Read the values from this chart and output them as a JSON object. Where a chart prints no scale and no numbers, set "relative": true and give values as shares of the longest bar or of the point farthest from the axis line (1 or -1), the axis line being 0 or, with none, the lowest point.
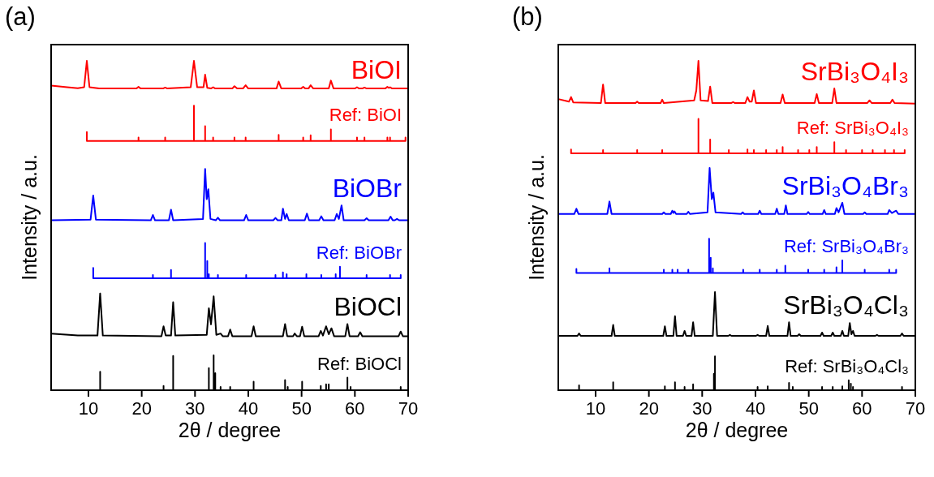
{
  "chart_data": [
    {
      "type": "line",
      "title": "(a)",
      "xlabel": "2θ / degree",
      "ylabel": "Intensity / a.u.",
      "relative": true,
      "xlim": [
        3,
        70
      ],
      "xticks": [
        10,
        20,
        30,
        40,
        50,
        60,
        70
      ],
      "legend": false,
      "grid": false,
      "marker": "none",
      "series": [
        {
          "name": "BiOI",
          "color": "#ff0000",
          "x": [
            3,
            6,
            8,
            9.2,
            9.7,
            10.2,
            12,
            19,
            19.4,
            19.8,
            24,
            24.4,
            24.8,
            29.2,
            29.8,
            30.4,
            31.6,
            31.9,
            32.3,
            33,
            33.4,
            33.8,
            37,
            37.4,
            37.9,
            39,
            39.5,
            40,
            45.3,
            45.7,
            46.2,
            49.9,
            50.3,
            50.7,
            51.3,
            51.7,
            52.2,
            55.1,
            55.5,
            56,
            60,
            60.4,
            60.8,
            61.4,
            61.8,
            62.2,
            65.7,
            66.1,
            66.4,
            66.6,
            67,
            70
          ],
          "values": [
            0.925,
            0.92,
            0.917,
            0.92,
            1.0,
            0.92,
            0.916,
            0.916,
            0.921,
            0.916,
            0.916,
            0.919,
            0.916,
            0.92,
            1.0,
            0.92,
            0.92,
            0.958,
            0.918,
            0.916,
            0.92,
            0.916,
            0.916,
            0.923,
            0.916,
            0.916,
            0.926,
            0.916,
            0.916,
            0.937,
            0.916,
            0.916,
            0.921,
            0.916,
            0.916,
            0.926,
            0.916,
            0.916,
            0.94,
            0.916,
            0.916,
            0.92,
            0.916,
            0.916,
            0.919,
            0.916,
            0.916,
            0.921,
            0.918,
            0.92,
            0.916,
            0.916
          ]
        },
        {
          "name": "Ref: BiOI",
          "color": "#ff0000",
          "x": [
            9.7,
            9.7,
            9.7,
            19.4,
            19.4,
            19.4,
            24.4,
            24.4,
            24.4,
            29.8,
            29.8,
            29.8,
            31.9,
            31.9,
            31.9,
            33.4,
            33.4,
            33.4,
            37.4,
            37.4,
            37.4,
            39.5,
            39.5,
            39.5,
            45.7,
            45.7,
            45.7,
            50.3,
            50.3,
            50.3,
            51.7,
            51.7,
            51.7,
            55.5,
            55.5,
            55.5,
            60.4,
            60.4,
            60.4,
            61.8,
            61.8,
            61.8,
            66.1,
            66.1,
            66.1,
            66.6,
            66.6,
            66.6,
            69.5,
            69.5,
            69.5
          ],
          "values": [
            0.757,
            0.784,
            0.757,
            0.757,
            0.767,
            0.757,
            0.757,
            0.767,
            0.757,
            0.757,
            0.864,
            0.757,
            0.757,
            0.802,
            0.757,
            0.757,
            0.767,
            0.757,
            0.757,
            0.767,
            0.757,
            0.757,
            0.767,
            0.757,
            0.757,
            0.775,
            0.757,
            0.757,
            0.767,
            0.757,
            0.757,
            0.774,
            0.757,
            0.757,
            0.792,
            0.757,
            0.757,
            0.767,
            0.757,
            0.757,
            0.767,
            0.757,
            0.757,
            0.767,
            0.757,
            0.757,
            0.767,
            0.757,
            0.757,
            0.767,
            0.757
          ]
        },
        {
          "name": "BiOBr",
          "color": "#0000ff",
          "x": [
            3,
            10.4,
            10.9,
            11.4,
            21.7,
            22.1,
            22.5,
            25.1,
            25.5,
            25.9,
            31.5,
            31.9,
            32.2,
            32.5,
            32.9,
            33.9,
            34.3,
            34.7,
            39.2,
            39.6,
            40,
            44.7,
            45.1,
            45.5,
            46.2,
            46.5,
            46.9,
            47.2,
            47.6,
            50.6,
            51,
            51.4,
            53.3,
            53.7,
            54.1,
            56.2,
            56.6,
            57,
            57.5,
            57.9,
            61.8,
            62.2,
            62.6,
            66.3,
            66.7,
            67.1,
            67.5,
            67.9,
            68.3,
            70
          ],
          "values": [
            0.516,
            0.518,
            0.591,
            0.518,
            0.516,
            0.532,
            0.516,
            0.516,
            0.548,
            0.516,
            0.52,
            0.672,
            0.58,
            0.61,
            0.52,
            0.516,
            0.524,
            0.516,
            0.516,
            0.532,
            0.516,
            0.516,
            0.523,
            0.516,
            0.516,
            0.551,
            0.52,
            0.535,
            0.516,
            0.516,
            0.536,
            0.516,
            0.516,
            0.528,
            0.516,
            0.516,
            0.535,
            0.52,
            0.561,
            0.516,
            0.516,
            0.522,
            0.516,
            0.516,
            0.527,
            0.516,
            0.516,
            0.52,
            0.516,
            0.516
          ]
        },
        {
          "name": "Ref: BiOBr",
          "color": "#0000ff",
          "x": [
            10.9,
            10.9,
            10.9,
            22.1,
            22.1,
            22.1,
            25.5,
            25.5,
            25.5,
            31.9,
            31.9,
            31.9,
            32.3,
            32.3,
            32.3,
            32.6,
            32.6,
            32.6,
            34.3,
            34.3,
            34.3,
            39.6,
            39.6,
            39.6,
            45.1,
            45.1,
            45.1,
            46.5,
            46.5,
            46.5,
            47.2,
            47.2,
            47.2,
            50.9,
            50.9,
            50.9,
            53.7,
            53.7,
            53.7,
            56.4,
            56.4,
            56.4,
            57.2,
            57.2,
            57.2,
            62.2,
            62.2,
            62.2,
            66.6,
            66.6,
            66.6,
            68.6,
            68.6,
            68.6
          ],
          "values": [
            0.34,
            0.371,
            0.34,
            0.34,
            0.35,
            0.34,
            0.34,
            0.365,
            0.34,
            0.34,
            0.447,
            0.34,
            0.34,
            0.392,
            0.34,
            0.34,
            0.352,
            0.34,
            0.34,
            0.35,
            0.34,
            0.34,
            0.35,
            0.34,
            0.34,
            0.35,
            0.34,
            0.34,
            0.358,
            0.34,
            0.34,
            0.352,
            0.34,
            0.34,
            0.352,
            0.34,
            0.34,
            0.35,
            0.34,
            0.34,
            0.352,
            0.34,
            0.34,
            0.375,
            0.34,
            0.34,
            0.35,
            0.34,
            0.34,
            0.35,
            0.34,
            0.34,
            0.35,
            0.34
          ]
        },
        {
          "name": "BiOCl",
          "color": "#000000",
          "x": [
            3,
            8,
            11.7,
            12.2,
            12.7,
            23.7,
            24.1,
            24.5,
            25.5,
            25.9,
            26.3,
            32.2,
            32.6,
            33,
            33.5,
            34,
            34.8,
            35.2,
            36.2,
            36.6,
            37,
            40.6,
            41,
            41.4,
            46.5,
            46.9,
            47.3,
            48.4,
            48.7,
            49.1,
            49.7,
            50.1,
            50.5,
            53.2,
            53.6,
            54,
            54.6,
            55.1,
            55.6,
            56.1,
            58.2,
            58.6,
            59,
            60.6,
            61,
            61.4,
            68.2,
            68.6,
            69,
            70
          ],
          "values": [
            0.172,
            0.166,
            0.166,
            0.294,
            0.166,
            0.164,
            0.194,
            0.166,
            0.166,
            0.267,
            0.166,
            0.168,
            0.249,
            0.2,
            0.285,
            0.168,
            0.172,
            0.164,
            0.164,
            0.184,
            0.164,
            0.164,
            0.194,
            0.164,
            0.164,
            0.201,
            0.164,
            0.164,
            0.172,
            0.164,
            0.164,
            0.193,
            0.164,
            0.164,
            0.18,
            0.166,
            0.194,
            0.17,
            0.188,
            0.164,
            0.164,
            0.201,
            0.164,
            0.164,
            0.176,
            0.164,
            0.164,
            0.178,
            0.164,
            0.164
          ]
        },
        {
          "name": "Ref: BiOCl",
          "color": "#000000",
          "x": [
            12.2,
            12.2,
            12.2,
            24.1,
            24.1,
            24.1,
            25.9,
            25.9,
            25.9,
            32.6,
            32.6,
            32.6,
            33.5,
            33.5,
            33.5,
            33.8,
            33.8,
            33.8,
            34.8,
            34.8,
            34.8,
            36.6,
            36.6,
            36.6,
            41,
            41,
            41,
            46.9,
            46.9,
            46.9,
            47.4,
            47.4,
            47.4,
            50.1,
            50.1,
            50.1,
            53.6,
            53.6,
            53.6,
            54.6,
            54.6,
            54.6,
            55.1,
            55.1,
            55.1,
            58.6,
            58.6,
            58.6,
            59.2,
            59.2,
            59.2,
            68.6,
            68.6,
            68.6
          ],
          "values": [
            0,
            0.056,
            0,
            0,
            0.013,
            0,
            0,
            0.104,
            0,
            0,
            0.067,
            0,
            0,
            0.106,
            0,
            0,
            0.052,
            0,
            0,
            0.01,
            0,
            0,
            0.01,
            0,
            0,
            0.026,
            0,
            0,
            0.031,
            0,
            0,
            0.01,
            0,
            0,
            0.026,
            0,
            0,
            0.013,
            0,
            0,
            0.018,
            0,
            0,
            0.018,
            0,
            0,
            0.038,
            0,
            0,
            0.01,
            0,
            0,
            0.01,
            0
          ]
        }
      ]
    },
    {
      "type": "line",
      "title": "(b)",
      "xlabel": "2θ / degree",
      "ylabel": "Intensity / a.u.",
      "relative": true,
      "xlim": [
        3,
        70
      ],
      "xticks": [
        10,
        20,
        30,
        40,
        50,
        60,
        70
      ],
      "legend": false,
      "grid": false,
      "marker": "none",
      "series": [
        {
          "name": "SrBi₃O₄I₃",
          "color": "#ff0000",
          "x": [
            3,
            5,
            5.4,
            5.8,
            11,
            11.4,
            11.8,
            17.5,
            17.8,
            18.1,
            22.2,
            22.5,
            22.8,
            28.5,
            28.9,
            29.3,
            29.7,
            31.1,
            31.5,
            31.9,
            35.5,
            35.8,
            36.1,
            38.1,
            38.5,
            38.9,
            39.3,
            39.7,
            40.1,
            44.7,
            45.1,
            45.5,
            51.1,
            51.5,
            51.9,
            54.4,
            54.8,
            55.2,
            61,
            61.4,
            61.8,
            65.3,
            65.7,
            66.1,
            70
          ],
          "values": [
            0.884,
            0.876,
            0.89,
            0.874,
            0.872,
            0.928,
            0.872,
            0.872,
            0.876,
            0.872,
            0.872,
            0.882,
            0.872,
            0.88,
            0.91,
            1.0,
            0.88,
            0.878,
            0.922,
            0.872,
            0.872,
            0.875,
            0.872,
            0.872,
            0.89,
            0.876,
            0.876,
            0.91,
            0.872,
            0.872,
            0.898,
            0.872,
            0.872,
            0.899,
            0.872,
            0.872,
            0.916,
            0.872,
            0.872,
            0.88,
            0.872,
            0.872,
            0.882,
            0.872,
            0.87
          ]
        },
        {
          "name": "Ref: SrBi₃O₄I₃",
          "color": "#ff0000",
          "x": [
            5.4,
            5.4,
            5.4,
            11.4,
            11.4,
            11.4,
            17.8,
            17.8,
            17.8,
            22.5,
            22.5,
            22.5,
            29.3,
            29.3,
            29.3,
            31.5,
            31.5,
            31.5,
            35,
            35,
            35,
            38.5,
            38.5,
            38.5,
            39.7,
            39.7,
            39.7,
            42,
            42,
            42,
            44,
            44,
            44,
            45.1,
            45.1,
            45.1,
            48,
            48,
            48,
            50.1,
            50.1,
            50.1,
            51.5,
            51.5,
            51.5,
            54.8,
            54.8,
            54.8,
            57,
            57,
            57,
            60,
            60,
            60,
            62,
            62,
            62,
            64.3,
            64.3,
            64.3,
            66,
            66,
            66,
            68,
            68,
            68
          ],
          "values": [
            0.719,
            0.731,
            0.719,
            0.719,
            0.729,
            0.719,
            0.719,
            0.729,
            0.719,
            0.719,
            0.729,
            0.719,
            0.719,
            0.824,
            0.719,
            0.719,
            0.761,
            0.719,
            0.719,
            0.729,
            0.719,
            0.719,
            0.731,
            0.719,
            0.719,
            0.729,
            0.719,
            0.719,
            0.729,
            0.719,
            0.719,
            0.729,
            0.719,
            0.719,
            0.738,
            0.719,
            0.719,
            0.729,
            0.719,
            0.719,
            0.729,
            0.719,
            0.719,
            0.738,
            0.719,
            0.719,
            0.753,
            0.719,
            0.719,
            0.729,
            0.719,
            0.719,
            0.729,
            0.719,
            0.719,
            0.729,
            0.719,
            0.719,
            0.729,
            0.719,
            0.719,
            0.729,
            0.719,
            0.719,
            0.729,
            0.719
          ]
        },
        {
          "name": "SrBi₃O₄Br₃",
          "color": "#0000ff",
          "x": [
            3,
            6,
            6.4,
            6.8,
            12.2,
            12.6,
            13,
            22.5,
            22.8,
            23.1,
            24.1,
            24.4,
            24.6,
            24.8,
            25.1,
            27.1,
            27.4,
            27.7,
            31,
            31.4,
            31.8,
            32.1,
            32.5,
            37.3,
            37.6,
            37.9,
            40.5,
            40.8,
            41.1,
            43.7,
            44,
            44.3,
            45.4,
            45.7,
            46,
            49.6,
            49.9,
            50.2,
            52.6,
            52.9,
            53.2,
            54.9,
            55.2,
            55.6,
            56.3,
            56.7,
            60.2,
            60.5,
            60.8,
            64.8,
            65.1,
            65.6,
            66.4,
            66.8,
            70
          ],
          "values": [
            0.535,
            0.535,
            0.551,
            0.535,
            0.535,
            0.573,
            0.535,
            0.535,
            0.54,
            0.535,
            0.535,
            0.545,
            0.538,
            0.543,
            0.535,
            0.535,
            0.542,
            0.535,
            0.54,
            0.675,
            0.58,
            0.6,
            0.54,
            0.535,
            0.54,
            0.535,
            0.535,
            0.545,
            0.535,
            0.535,
            0.551,
            0.535,
            0.535,
            0.561,
            0.535,
            0.535,
            0.541,
            0.535,
            0.535,
            0.547,
            0.535,
            0.535,
            0.553,
            0.54,
            0.569,
            0.535,
            0.535,
            0.54,
            0.535,
            0.535,
            0.547,
            0.538,
            0.545,
            0.535,
            0.535
          ]
        },
        {
          "name": "Ref: SrBi₃O₄Br₃",
          "color": "#0000ff",
          "x": [
            6.4,
            6.4,
            6.4,
            12.6,
            12.6,
            12.6,
            22.8,
            22.8,
            22.8,
            24.4,
            24.4,
            24.4,
            25.4,
            25.4,
            25.4,
            27.4,
            27.4,
            27.4,
            31.3,
            31.3,
            31.3,
            31.6,
            31.6,
            31.6,
            32,
            32,
            32,
            37.7,
            37.7,
            37.7,
            40.8,
            40.8,
            40.8,
            44,
            44,
            44,
            45.6,
            45.6,
            45.6,
            49.9,
            49.9,
            49.9,
            52.9,
            52.9,
            52.9,
            55.2,
            55.2,
            55.2,
            56.3,
            56.3,
            56.3,
            60.5,
            60.5,
            60.5,
            65.1,
            65.1,
            65.1,
            66.4,
            66.4,
            66.4
          ],
          "values": [
            0.356,
            0.368,
            0.356,
            0.356,
            0.37,
            0.356,
            0.356,
            0.366,
            0.356,
            0.356,
            0.366,
            0.356,
            0.356,
            0.366,
            0.356,
            0.356,
            0.366,
            0.356,
            0.356,
            0.46,
            0.356,
            0.356,
            0.402,
            0.356,
            0.356,
            0.37,
            0.356,
            0.356,
            0.366,
            0.356,
            0.356,
            0.366,
            0.356,
            0.356,
            0.366,
            0.356,
            0.356,
            0.378,
            0.356,
            0.356,
            0.366,
            0.356,
            0.356,
            0.366,
            0.356,
            0.356,
            0.373,
            0.356,
            0.356,
            0.394,
            0.356,
            0.356,
            0.366,
            0.356,
            0.356,
            0.366,
            0.356,
            0.356,
            0.366,
            0.356
          ]
        },
        {
          "name": "SrBi₃O₄Cl₃",
          "color": "#000000",
          "x": [
            3,
            6.6,
            6.9,
            7.2,
            13,
            13.3,
            13.6,
            22.7,
            23,
            23.3,
            24.6,
            24.9,
            25.2,
            26.4,
            26.7,
            27,
            28,
            28.3,
            28.6,
            32,
            32.4,
            32.8,
            34.9,
            35.2,
            35.5,
            40.1,
            40.4,
            40.7,
            42,
            42.3,
            42.6,
            46,
            46.3,
            46.6,
            47.9,
            48.2,
            48.5,
            52.2,
            52.5,
            52.8,
            54.2,
            54.5,
            54.8,
            56,
            56.3,
            56.6,
            57.4,
            57.7,
            58,
            58.3,
            58.6,
            62.5,
            62.8,
            63.1,
            67.2,
            67.5,
            67.8,
            70
          ],
          "values": [
            0.165,
            0.165,
            0.172,
            0.165,
            0.165,
            0.198,
            0.165,
            0.165,
            0.194,
            0.165,
            0.165,
            0.225,
            0.165,
            0.165,
            0.18,
            0.165,
            0.165,
            0.206,
            0.165,
            0.165,
            0.298,
            0.165,
            0.165,
            0.168,
            0.165,
            0.165,
            0.168,
            0.165,
            0.165,
            0.195,
            0.165,
            0.165,
            0.206,
            0.165,
            0.165,
            0.17,
            0.165,
            0.165,
            0.175,
            0.165,
            0.165,
            0.175,
            0.165,
            0.165,
            0.18,
            0.165,
            0.165,
            0.204,
            0.17,
            0.18,
            0.165,
            0.165,
            0.168,
            0.165,
            0.165,
            0.172,
            0.165,
            0.165
          ]
        },
        {
          "name": "Ref: SrBi₃O₄Cl₃",
          "color": "#000000",
          "x": [
            6.9,
            6.9,
            6.9,
            13.3,
            13.3,
            13.3,
            23,
            23,
            23,
            24.9,
            24.9,
            24.9,
            26.7,
            26.7,
            26.7,
            28.3,
            28.3,
            28.3,
            32.2,
            32.2,
            32.2,
            32.4,
            32.4,
            32.4,
            40.4,
            40.4,
            40.4,
            42.3,
            42.3,
            42.3,
            46.3,
            46.3,
            46.3,
            47,
            47,
            47,
            52.5,
            52.5,
            52.5,
            54.5,
            54.5,
            54.5,
            56.3,
            56.3,
            56.3,
            57.5,
            57.5,
            57.5,
            57.9,
            57.9,
            57.9,
            58.3,
            58.3,
            58.3,
            67.5,
            67.5,
            67.5
          ],
          "values": [
            0,
            0.015,
            0,
            0,
            0.024,
            0,
            0,
            0.012,
            0,
            0,
            0.024,
            0,
            0,
            0.01,
            0,
            0,
            0.018,
            0,
            0,
            0.05,
            0,
            0,
            0.103,
            0,
            0,
            0.01,
            0,
            0,
            0.012,
            0,
            0,
            0.022,
            0,
            0,
            0.01,
            0,
            0,
            0.01,
            0,
            0,
            0.01,
            0,
            0,
            0.012,
            0,
            0,
            0.03,
            0,
            0,
            0.02,
            0,
            0,
            0.01,
            0,
            0,
            0.01,
            0
          ]
        }
      ]
    }
  ]
}
